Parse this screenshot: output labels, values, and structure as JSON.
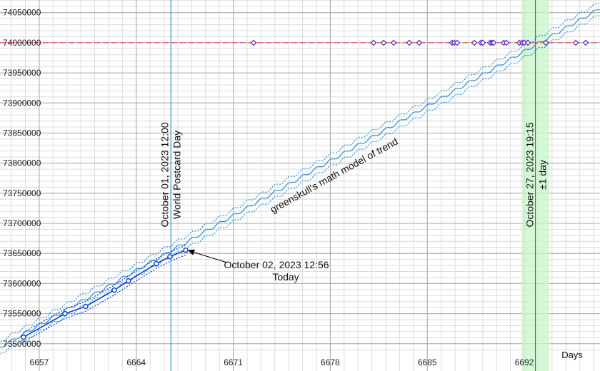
{
  "chart_data": {
    "type": "line",
    "xlim": [
      6654.17,
      6697.46
    ],
    "ylim": [
      73482000,
      74071000
    ],
    "xticks": [
      6657,
      6664,
      6671,
      6678,
      6685,
      6692
    ],
    "yticks": [
      73500000,
      73550000,
      73600000,
      73650000,
      73700000,
      73750000,
      73800000,
      73850000,
      73900000,
      73950000,
      74000000,
      74050000
    ],
    "minor_grid": {
      "x": 1,
      "y": 10000
    },
    "x_label": "Days",
    "observed": {
      "color": "#0a3fd6",
      "band": 8000,
      "x": [
        6655.87,
        6658.86,
        6660.35,
        6662.41,
        6663.44,
        6665.45,
        6666.43,
        6667.57
      ],
      "values": [
        73510900,
        73550000,
        73562000,
        73589100,
        73604500,
        73633000,
        73644800,
        73655450
      ]
    },
    "model": {
      "color": "#2a8ae0",
      "band": 10000,
      "label": "greenskull's math model of trend",
      "x": [
        6654,
        6654.5,
        6655,
        6655.5,
        6656,
        6656.5,
        6657,
        6657.5,
        6658,
        6658.5,
        6659,
        6659.5,
        6660,
        6660.5,
        6661,
        6661.5,
        6662,
        6662.5,
        6663,
        6663.5,
        6664,
        6664.5,
        6665,
        6665.5,
        6666,
        6666.5,
        6667,
        6667.5,
        6668,
        6668.5,
        6669,
        6669.5,
        6670,
        6670.5,
        6671,
        6671.5,
        6672,
        6672.5,
        6673,
        6673.5,
        6674,
        6674.5,
        6675,
        6675.5,
        6676,
        6676.5,
        6677,
        6677.5,
        6678,
        6678.5,
        6679,
        6679.5,
        6680,
        6680.5,
        6681,
        6681.5,
        6682,
        6682.5,
        6683,
        6683.5,
        6684,
        6684.5,
        6685,
        6685.5,
        6686,
        6686.5,
        6687,
        6687.5,
        6688,
        6688.5,
        6689,
        6689.5,
        6690,
        6690.5,
        6691,
        6691.5,
        6692,
        6692.5,
        6693,
        6693.5,
        6694,
        6694.5,
        6695,
        6695.5,
        6696,
        6696.5,
        6697,
        6697.5
      ],
      "values": [
        73494300,
        73495800,
        73507300,
        73508800,
        73520300,
        73521800,
        73533300,
        73534800,
        73546300,
        73547800,
        73559300,
        73560800,
        73572300,
        73573800,
        73585300,
        73586800,
        73598300,
        73599800,
        73611300,
        73612800,
        73624300,
        73625800,
        73637300,
        73638800,
        73650300,
        73651800,
        73663300,
        73664800,
        73676300,
        73677800,
        73689300,
        73690800,
        73702300,
        73703800,
        73715300,
        73716800,
        73728300,
        73729800,
        73741300,
        73742800,
        73754300,
        73755800,
        73767300,
        73768800,
        73780300,
        73781800,
        73793300,
        73794800,
        73806300,
        73807800,
        73819300,
        73820800,
        73832300,
        73833800,
        73845300,
        73846800,
        73858300,
        73859800,
        73871300,
        73872800,
        73884300,
        73885800,
        73897300,
        73898800,
        73910300,
        73911800,
        73923300,
        73924800,
        73936300,
        73937800,
        73949300,
        73950800,
        73962300,
        73963800,
        73975300,
        73976800,
        73988300,
        73989800,
        74001300,
        74002800,
        74014300,
        74015800,
        74027300,
        74028800,
        74040300,
        74041800,
        74053300,
        74054800
      ]
    },
    "target": {
      "value": 74000000,
      "color": "#e03030",
      "points_color": "#5a1fd0",
      "x": [
        6672.46,
        6681.12,
        6681.85,
        6682.57,
        6683.7,
        6684.42,
        6686.79,
        6686.95,
        6687.15,
        6688.39,
        6688.86,
        6689.01,
        6689.53,
        6689.68,
        6689.78,
        6690.51,
        6690.71,
        6691.64,
        6691.85,
        6692.0,
        6692.26,
        6693.55,
        6695.71,
        6696.43
      ]
    },
    "events": [
      {
        "x": 6666.5,
        "color": "#3a8ee6",
        "label": "October 01, 2023 12:00",
        "sublabel": "World Postcard Day"
      }
    ],
    "today": {
      "x": 6667.57,
      "y": 73655450,
      "label": "October 02, 2023 12:56",
      "sublabel": "Today"
    },
    "prediction": {
      "x": 6692.8,
      "error": 1,
      "color": "#2e8b3a",
      "band_color": "#c8f5c8",
      "label": "October 27, 2023 19:15",
      "sublabel": "±1 day"
    }
  }
}
